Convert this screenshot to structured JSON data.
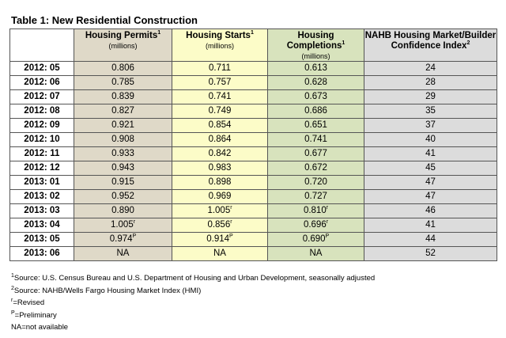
{
  "title": "Table 1: New Residential Construction",
  "headers": [
    {
      "label": "",
      "sup": "",
      "sub": ""
    },
    {
      "label": "Housing Permits",
      "sup": "1",
      "sub": "(millions)"
    },
    {
      "label": "Housing Starts",
      "sup": "1",
      "sub": "(millions)"
    },
    {
      "label": "Housing Completions",
      "sup": "1",
      "sub": "(millions)"
    },
    {
      "label": "NAHB Housing Market/Builder Confidence Index",
      "sup": "2",
      "sub": ""
    }
  ],
  "rows": [
    {
      "period": "2012: 05",
      "permits": "0.806",
      "starts": "0.711",
      "completions": "0.613",
      "index": "24"
    },
    {
      "period": "2012: 06",
      "permits": "0.785",
      "starts": "0.757",
      "completions": "0.628",
      "index": "28"
    },
    {
      "period": "2012: 07",
      "permits": "0.839",
      "starts": "0.741",
      "completions": "0.673",
      "index": "29"
    },
    {
      "period": "2012: 08",
      "permits": "0.827",
      "starts": "0.749",
      "completions": "0.686",
      "index": "35"
    },
    {
      "period": "2012: 09",
      "permits": "0.921",
      "starts": "0.854",
      "completions": "0.651",
      "index": "37"
    },
    {
      "period": "2012: 10",
      "permits": "0.908",
      "starts": "0.864",
      "completions": "0.741",
      "index": "40"
    },
    {
      "period": "2012: 11",
      "permits": "0.933",
      "starts": "0.842",
      "completions": "0.677",
      "index": "41"
    },
    {
      "period": "2012: 12",
      "permits": "0.943",
      "starts": "0.983",
      "completions": "0.672",
      "index": "45"
    },
    {
      "period": "2013: 01",
      "permits": "0.915",
      "starts": "0.898",
      "completions": "0.720",
      "index": "47"
    },
    {
      "period": "2013: 02",
      "permits": "0.952",
      "starts": "0.969",
      "completions": "0.727",
      "index": "47"
    },
    {
      "period": "2013: 03",
      "permits": "0.890",
      "starts": "1.005",
      "starts_mark": "r",
      "completions": "0.810",
      "completions_mark": "r",
      "index": "46"
    },
    {
      "period": "2013: 04",
      "permits": "1.005",
      "permits_mark": "r",
      "starts": "0.856",
      "starts_mark": "r",
      "completions": "0.696",
      "completions_mark": "r",
      "index": "41"
    },
    {
      "period": "2013: 05",
      "permits": "0.974",
      "permits_mark": "P",
      "starts": "0.914",
      "starts_mark": "P",
      "completions": "0.690",
      "completions_mark": "P",
      "index": "44"
    },
    {
      "period": "2013: 06",
      "permits": "NA",
      "starts": "NA",
      "completions": "NA",
      "index": "52"
    }
  ],
  "notes": [
    {
      "sup": "1",
      "text": "Source: U.S. Census Bureau and U.S. Department of Housing and Urban Development, seasonally adjusted"
    },
    {
      "sup": "2",
      "text": "Source: NAHB/Wells Fargo Housing Market Index (HMI)"
    },
    {
      "sup": "r",
      "text": "=Revised"
    },
    {
      "sup": "P",
      "text": "=Preliminary"
    },
    {
      "sup": "",
      "text": "NA=not available"
    }
  ]
}
